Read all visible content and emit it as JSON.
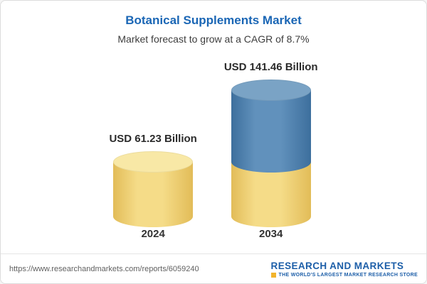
{
  "header": {
    "title": "Botanical Supplements Market",
    "subtitle": "Market forecast to grow at a CAGR of 8.7%"
  },
  "chart_data": {
    "type": "bar",
    "variant": "3d-cylinder",
    "title": "Botanical Supplements Market",
    "subtitle": "Market forecast to grow at a CAGR of 8.7%",
    "cagr": "8.7%",
    "unit": "USD Billion",
    "categories": [
      "2024",
      "2034"
    ],
    "values": [
      61.23,
      141.46
    ],
    "value_labels": [
      "USD 61.23 Billion",
      "USD 141.46 Billion"
    ],
    "stacks": [
      [
        {
          "color": "gold",
          "value": 61.23
        }
      ],
      [
        {
          "color": "gold",
          "value": 61.23
        },
        {
          "color": "blue",
          "value": 80.23
        }
      ]
    ],
    "colors": {
      "gold": {
        "edge": "#e2bc58",
        "mid": "#f5dc88",
        "cap": "#f8e8a6"
      },
      "blue": {
        "edge": "#3d6f9d",
        "mid": "#6191bc",
        "cap": "#7aa3c5"
      }
    },
    "legend": "none",
    "grid": false
  },
  "footer": {
    "url": "https://www.researchandmarkets.com/reports/6059240",
    "logo_line1": "RESEARCH AND MARKETS",
    "logo_tagline": "THE WORLD'S LARGEST MARKET RESEARCH STORE"
  }
}
